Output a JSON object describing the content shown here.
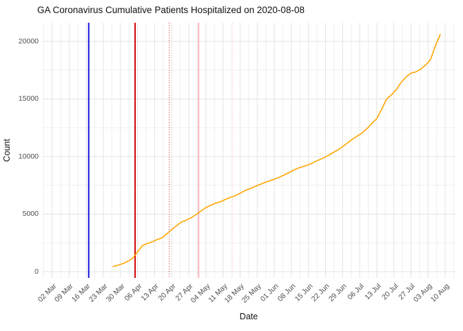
{
  "title": "GA Coronavirus Cumulative Patients Hospitalized on 2020-08-08",
  "chart_data": {
    "type": "line",
    "title": "GA Coronavirus Cumulative Patients Hospitalized on 2020-08-08",
    "xlabel": "Date",
    "ylabel": "Count",
    "legend": false,
    "grid": true,
    "background": "#ffffff",
    "grid_major_color": "#e3e3e3",
    "grid_minor_color": "#efefef",
    "x_ticks": [
      "02 Mar",
      "09 Mar",
      "16 Mar",
      "23 Mar",
      "30 Mar",
      "06 Apr",
      "13 Apr",
      "20 Apr",
      "27 Apr",
      "04 May",
      "11 May",
      "18 May",
      "25 May",
      "01 Jun",
      "08 Jun",
      "15 Jun",
      "22 Jun",
      "29 Jun",
      "06 Jul",
      "13 Jul",
      "20 Jul",
      "27 Jul",
      "03 Aug",
      "10 Aug"
    ],
    "x_tick_dates": [
      "2020-03-02",
      "2020-03-09",
      "2020-03-16",
      "2020-03-23",
      "2020-03-30",
      "2020-04-06",
      "2020-04-13",
      "2020-04-20",
      "2020-04-27",
      "2020-05-04",
      "2020-05-11",
      "2020-05-18",
      "2020-05-25",
      "2020-06-01",
      "2020-06-08",
      "2020-06-15",
      "2020-06-22",
      "2020-06-29",
      "2020-07-06",
      "2020-07-13",
      "2020-07-20",
      "2020-07-27",
      "2020-08-03",
      "2020-08-10"
    ],
    "y_ticks": [
      0,
      5000,
      10000,
      15000,
      20000
    ],
    "y_minor_ticks": [
      2500,
      7500,
      12500,
      17500
    ],
    "ylim": [
      0,
      21600
    ],
    "vlines": [
      {
        "date": "2020-03-17",
        "color": "#1414dc",
        "style": "solid",
        "width": 2
      },
      {
        "date": "2020-04-05",
        "color": "#d10000",
        "style": "solid",
        "width": 2
      },
      {
        "date": "2020-04-19",
        "color": "#d10000",
        "style": "dotted",
        "width": 1
      },
      {
        "date": "2020-05-01",
        "color": "#ffb6c1",
        "style": "solid",
        "width": 2
      },
      {
        "date": "2020-05-15",
        "color": "#ffb6c1",
        "style": "dotted",
        "width": 1
      }
    ],
    "series": [
      {
        "name": "cumulative-patients-hospitalized",
        "color": "#FFA500",
        "start_date": "2020-03-27",
        "step_days": 2,
        "values": [
          450,
          570,
          700,
          900,
          1160,
          1710,
          2270,
          2450,
          2590,
          2790,
          2930,
          3290,
          3660,
          4000,
          4310,
          4480,
          4690,
          4970,
          5270,
          5570,
          5770,
          5950,
          6080,
          6280,
          6450,
          6590,
          6810,
          7040,
          7210,
          7390,
          7570,
          7730,
          7880,
          8030,
          8200,
          8390,
          8600,
          8830,
          9010,
          9140,
          9280,
          9480,
          9680,
          9860,
          10080,
          10330,
          10570,
          10850,
          11180,
          11500,
          11780,
          12050,
          12430,
          12880,
          13300,
          14100,
          15000,
          15350,
          15800,
          16450,
          16900,
          17250,
          17350,
          17600,
          17950,
          18400,
          19600,
          20600
        ]
      }
    ]
  }
}
